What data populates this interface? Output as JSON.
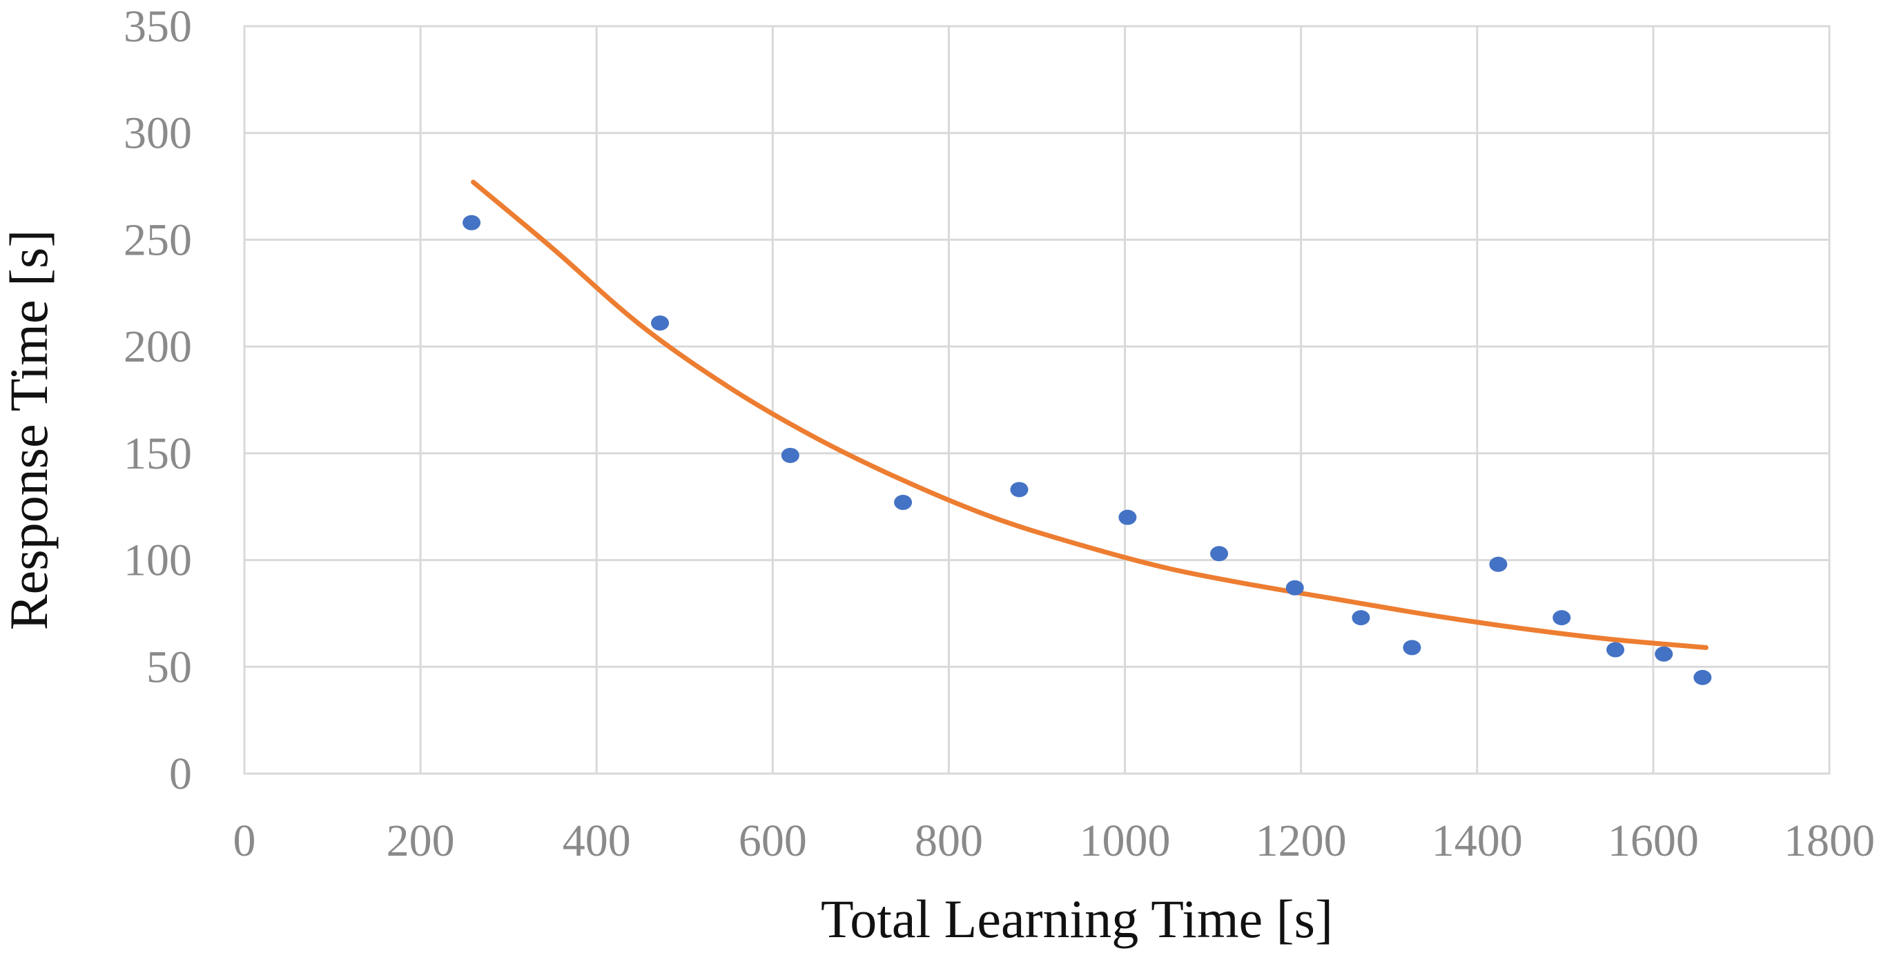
{
  "chart_data": {
    "type": "scatter",
    "title": "",
    "xlabel": "Total Learning Time [s]",
    "ylabel": "Response Time [s]",
    "xlim": [
      0,
      1800
    ],
    "ylim": [
      0,
      350
    ],
    "xticks": [
      0,
      200,
      400,
      600,
      800,
      1000,
      1200,
      1400,
      1600,
      1800
    ],
    "yticks": [
      0,
      50,
      100,
      150,
      200,
      250,
      300,
      350
    ],
    "grid": true,
    "legend": "none",
    "series": [
      {
        "kind": "scatter",
        "color": "#4472c4",
        "points": [
          {
            "x": 258,
            "y": 258
          },
          {
            "x": 472,
            "y": 211
          },
          {
            "x": 620,
            "y": 149
          },
          {
            "x": 748,
            "y": 127
          },
          {
            "x": 880,
            "y": 133
          },
          {
            "x": 1003,
            "y": 120
          },
          {
            "x": 1107,
            "y": 103
          },
          {
            "x": 1193,
            "y": 87
          },
          {
            "x": 1268,
            "y": 73
          },
          {
            "x": 1326,
            "y": 59
          },
          {
            "x": 1424,
            "y": 98
          },
          {
            "x": 1496,
            "y": 73
          },
          {
            "x": 1557,
            "y": 58
          },
          {
            "x": 1612,
            "y": 56
          },
          {
            "x": 1656,
            "y": 45
          }
        ]
      },
      {
        "kind": "line",
        "color": "#ed7d31",
        "points": [
          {
            "x": 260,
            "y": 277
          },
          {
            "x": 350,
            "y": 246
          },
          {
            "x": 450,
            "y": 210
          },
          {
            "x": 550,
            "y": 181
          },
          {
            "x": 650,
            "y": 157
          },
          {
            "x": 750,
            "y": 137
          },
          {
            "x": 850,
            "y": 120
          },
          {
            "x": 950,
            "y": 107
          },
          {
            "x": 1050,
            "y": 96
          },
          {
            "x": 1150,
            "y": 88
          },
          {
            "x": 1250,
            "y": 81
          },
          {
            "x": 1350,
            "y": 74
          },
          {
            "x": 1450,
            "y": 68
          },
          {
            "x": 1550,
            "y": 63
          },
          {
            "x": 1660,
            "y": 59
          }
        ]
      }
    ]
  }
}
